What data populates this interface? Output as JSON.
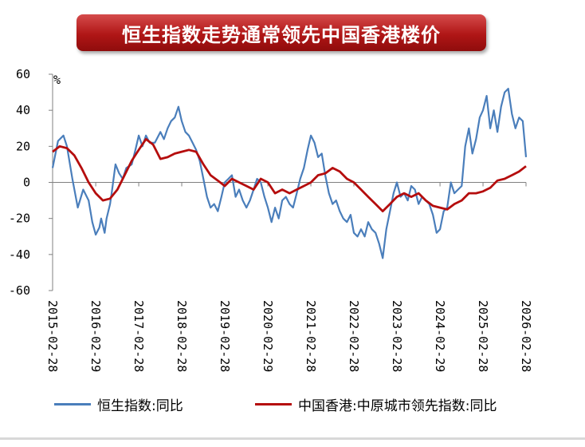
{
  "chart_data": {
    "type": "line",
    "title": "恒生指数走势通常领先中国香港楼价",
    "ylabel": "%",
    "ylim": [
      -60,
      60
    ],
    "yticks": [
      60,
      40,
      20,
      0,
      -20,
      -40,
      -60
    ],
    "xlim": [
      "2015-02-28",
      "2026-02-28"
    ],
    "xticks": [
      "2015-02-28",
      "2016-02-29",
      "2017-02-28",
      "2018-02-28",
      "2019-02-28",
      "2020-02-29",
      "2021-02-28",
      "2022-02-28",
      "2023-02-28",
      "2024-02-29",
      "2025-02-28",
      "2026-02-28"
    ],
    "grid": false,
    "legend_position": "bottom",
    "series": [
      {
        "name": "恒生指数:同比",
        "color": "#4a7ebb",
        "points": [
          [
            "2015-02-28",
            8
          ],
          [
            "2015-04-15",
            23
          ],
          [
            "2015-05-31",
            26
          ],
          [
            "2015-06-30",
            20
          ],
          [
            "2015-08-15",
            2
          ],
          [
            "2015-09-30",
            -14
          ],
          [
            "2015-11-15",
            -4
          ],
          [
            "2015-12-31",
            -10
          ],
          [
            "2016-01-31",
            -22
          ],
          [
            "2016-02-29",
            -29
          ],
          [
            "2016-03-31",
            -25
          ],
          [
            "2016-04-15",
            -20
          ],
          [
            "2016-05-15",
            -28
          ],
          [
            "2016-05-31",
            -20
          ],
          [
            "2016-06-30",
            -12
          ],
          [
            "2016-07-15",
            -5
          ],
          [
            "2016-08-15",
            10
          ],
          [
            "2016-09-15",
            5
          ],
          [
            "2016-10-15",
            2
          ],
          [
            "2016-11-15",
            8
          ],
          [
            "2016-12-31",
            10
          ],
          [
            "2017-01-31",
            18
          ],
          [
            "2017-02-28",
            26
          ],
          [
            "2017-03-31",
            20
          ],
          [
            "2017-04-30",
            26
          ],
          [
            "2017-05-31",
            22
          ],
          [
            "2017-07-15",
            22
          ],
          [
            "2017-08-31",
            28
          ],
          [
            "2017-09-30",
            24
          ],
          [
            "2017-10-31",
            30
          ],
          [
            "2017-11-30",
            34
          ],
          [
            "2017-12-31",
            36
          ],
          [
            "2018-01-31",
            42
          ],
          [
            "2018-02-28",
            34
          ],
          [
            "2018-03-31",
            28
          ],
          [
            "2018-04-30",
            26
          ],
          [
            "2018-05-31",
            22
          ],
          [
            "2018-06-30",
            18
          ],
          [
            "2018-07-31",
            12
          ],
          [
            "2018-08-31",
            2
          ],
          [
            "2018-09-30",
            -8
          ],
          [
            "2018-10-31",
            -14
          ],
          [
            "2018-11-30",
            -12
          ],
          [
            "2018-12-31",
            -16
          ],
          [
            "2019-01-31",
            -8
          ],
          [
            "2019-02-28",
            0
          ],
          [
            "2019-03-31",
            2
          ],
          [
            "2019-04-30",
            4
          ],
          [
            "2019-05-31",
            -8
          ],
          [
            "2019-06-30",
            -4
          ],
          [
            "2019-07-31",
            -10
          ],
          [
            "2019-08-31",
            -14
          ],
          [
            "2019-09-30",
            -10
          ],
          [
            "2019-10-31",
            -4
          ],
          [
            "2019-11-30",
            2
          ],
          [
            "2019-12-31",
            0
          ],
          [
            "2020-01-31",
            -8
          ],
          [
            "2020-02-29",
            -14
          ],
          [
            "2020-03-31",
            -22
          ],
          [
            "2020-04-30",
            -14
          ],
          [
            "2020-05-31",
            -20
          ],
          [
            "2020-06-30",
            -10
          ],
          [
            "2020-07-31",
            -8
          ],
          [
            "2020-08-31",
            -12
          ],
          [
            "2020-09-30",
            -14
          ],
          [
            "2020-10-31",
            -6
          ],
          [
            "2020-11-30",
            2
          ],
          [
            "2020-12-31",
            8
          ],
          [
            "2021-01-31",
            18
          ],
          [
            "2021-02-28",
            26
          ],
          [
            "2021-03-31",
            22
          ],
          [
            "2021-04-30",
            14
          ],
          [
            "2021-05-31",
            16
          ],
          [
            "2021-06-30",
            4
          ],
          [
            "2021-07-31",
            -6
          ],
          [
            "2021-08-31",
            -12
          ],
          [
            "2021-09-30",
            -10
          ],
          [
            "2021-10-31",
            -16
          ],
          [
            "2021-11-30",
            -20
          ],
          [
            "2021-12-31",
            -22
          ],
          [
            "2022-01-31",
            -18
          ],
          [
            "2022-02-28",
            -28
          ],
          [
            "2022-03-31",
            -30
          ],
          [
            "2022-04-30",
            -26
          ],
          [
            "2022-05-31",
            -30
          ],
          [
            "2022-06-30",
            -22
          ],
          [
            "2022-07-31",
            -26
          ],
          [
            "2022-08-31",
            -28
          ],
          [
            "2022-09-30",
            -34
          ],
          [
            "2022-10-31",
            -42
          ],
          [
            "2022-11-30",
            -26
          ],
          [
            "2022-12-31",
            -16
          ],
          [
            "2023-01-31",
            -6
          ],
          [
            "2023-02-28",
            0
          ],
          [
            "2023-03-31",
            -8
          ],
          [
            "2023-04-30",
            -6
          ],
          [
            "2023-05-31",
            -10
          ],
          [
            "2023-06-30",
            -2
          ],
          [
            "2023-07-31",
            -4
          ],
          [
            "2023-08-31",
            -12
          ],
          [
            "2023-09-30",
            -8
          ],
          [
            "2023-10-31",
            -10
          ],
          [
            "2023-11-30",
            -12
          ],
          [
            "2023-12-31",
            -18
          ],
          [
            "2024-01-31",
            -28
          ],
          [
            "2024-02-29",
            -26
          ],
          [
            "2024-03-31",
            -16
          ],
          [
            "2024-04-30",
            -14
          ],
          [
            "2024-05-31",
            0
          ],
          [
            "2024-06-30",
            -6
          ],
          [
            "2024-07-31",
            -4
          ],
          [
            "2024-08-31",
            -2
          ],
          [
            "2024-09-30",
            20
          ],
          [
            "2024-10-31",
            30
          ],
          [
            "2024-11-30",
            16
          ],
          [
            "2024-12-31",
            24
          ],
          [
            "2025-01-31",
            36
          ],
          [
            "2025-02-28",
            40
          ],
          [
            "2025-03-31",
            48
          ],
          [
            "2025-04-30",
            30
          ],
          [
            "2025-05-31",
            40
          ],
          [
            "2025-06-30",
            28
          ],
          [
            "2025-07-31",
            42
          ],
          [
            "2025-08-31",
            50
          ],
          [
            "2025-09-30",
            52
          ],
          [
            "2025-10-31",
            38
          ],
          [
            "2025-11-30",
            30
          ],
          [
            "2025-12-31",
            36
          ],
          [
            "2026-01-31",
            34
          ],
          [
            "2026-02-28",
            14
          ]
        ]
      },
      {
        "name": "中国香港:中原城市领先指数:同比",
        "color": "#b50d0d",
        "points": [
          [
            "2015-02-28",
            17
          ],
          [
            "2015-04-30",
            20
          ],
          [
            "2015-06-30",
            19
          ],
          [
            "2015-08-31",
            15
          ],
          [
            "2015-10-31",
            8
          ],
          [
            "2015-12-31",
            0
          ],
          [
            "2016-02-29",
            -6
          ],
          [
            "2016-04-30",
            -10
          ],
          [
            "2016-06-30",
            -9
          ],
          [
            "2016-08-31",
            -4
          ],
          [
            "2016-10-31",
            4
          ],
          [
            "2016-12-31",
            12
          ],
          [
            "2017-02-28",
            18
          ],
          [
            "2017-04-30",
            24
          ],
          [
            "2017-06-30",
            21
          ],
          [
            "2017-08-31",
            13
          ],
          [
            "2017-10-31",
            14
          ],
          [
            "2017-12-31",
            16
          ],
          [
            "2018-02-28",
            17
          ],
          [
            "2018-04-30",
            18
          ],
          [
            "2018-06-30",
            17
          ],
          [
            "2018-08-31",
            10
          ],
          [
            "2018-10-31",
            4
          ],
          [
            "2018-12-31",
            1
          ],
          [
            "2019-02-28",
            -2
          ],
          [
            "2019-04-30",
            2
          ],
          [
            "2019-06-30",
            0
          ],
          [
            "2019-08-31",
            -2
          ],
          [
            "2019-10-31",
            -4
          ],
          [
            "2019-12-31",
            2
          ],
          [
            "2020-02-29",
            0
          ],
          [
            "2020-04-30",
            -6
          ],
          [
            "2020-06-30",
            -4
          ],
          [
            "2020-08-31",
            -6
          ],
          [
            "2020-10-31",
            -4
          ],
          [
            "2020-12-31",
            -2
          ],
          [
            "2021-02-28",
            0
          ],
          [
            "2021-04-30",
            4
          ],
          [
            "2021-06-30",
            5
          ],
          [
            "2021-08-31",
            8
          ],
          [
            "2021-10-31",
            6
          ],
          [
            "2021-12-31",
            2
          ],
          [
            "2022-02-28",
            0
          ],
          [
            "2022-04-30",
            -4
          ],
          [
            "2022-06-30",
            -8
          ],
          [
            "2022-08-31",
            -12
          ],
          [
            "2022-10-31",
            -16
          ],
          [
            "2022-12-31",
            -12
          ],
          [
            "2023-02-28",
            -8
          ],
          [
            "2023-04-30",
            -6
          ],
          [
            "2023-06-30",
            -8
          ],
          [
            "2023-08-31",
            -6
          ],
          [
            "2023-10-31",
            -10
          ],
          [
            "2023-12-31",
            -13
          ],
          [
            "2024-02-29",
            -14
          ],
          [
            "2024-04-30",
            -15
          ],
          [
            "2024-06-30",
            -12
          ],
          [
            "2024-08-31",
            -10
          ],
          [
            "2024-10-31",
            -6
          ],
          [
            "2024-12-31",
            -6
          ],
          [
            "2025-02-28",
            -5
          ],
          [
            "2025-04-30",
            -3
          ],
          [
            "2025-06-30",
            1
          ],
          [
            "2025-08-31",
            2
          ],
          [
            "2025-10-31",
            4
          ],
          [
            "2025-12-31",
            6
          ],
          [
            "2026-02-28",
            9
          ]
        ]
      }
    ]
  }
}
